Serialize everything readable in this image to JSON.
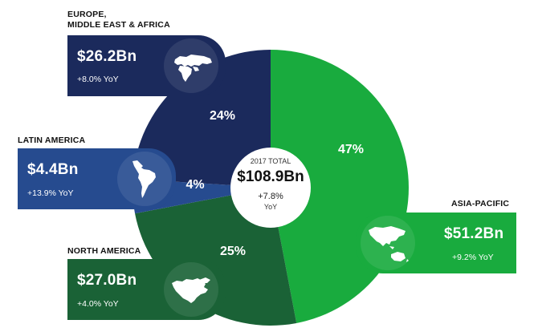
{
  "colors": {
    "emea": "#1b2a5c",
    "latam": "#264b8f",
    "north_america": "#1a6236",
    "asia_pacific": "#19ab3e",
    "white": "#ffffff"
  },
  "center": {
    "title": "2017 TOTAL",
    "value": "$108.9Bn",
    "growth": "+7.8%",
    "growth_unit": "YoY"
  },
  "regions": {
    "emea": {
      "name": "EUROPE,\nMIDDLE EAST & AFRICA",
      "amount": "$26.2Bn",
      "yoy": "+8.0% YoY",
      "share": "24%",
      "icon": "europe-africa-map-icon"
    },
    "latam": {
      "name": "LATIN AMERICA",
      "amount": "$4.4Bn",
      "yoy": "+13.9% YoY",
      "share": "4%",
      "icon": "south-america-map-icon"
    },
    "north_america": {
      "name": "NORTH AMERICA",
      "amount": "$27.0Bn",
      "yoy": "+4.0% YoY",
      "share": "25%",
      "icon": "north-america-map-icon"
    },
    "asia_pacific": {
      "name": "ASIA-PACIFIC",
      "amount": "$51.2Bn",
      "yoy": "+9.2% YoY",
      "share": "47%",
      "icon": "asia-pacific-map-icon"
    }
  },
  "chart_data": {
    "type": "pie",
    "title": "",
    "total_label": "2017 TOTAL",
    "total": 108.9,
    "unit": "$Bn",
    "start_angle_deg": 0,
    "direction": "clockwise",
    "slices": [
      {
        "key": "asia_pacific",
        "label": "ASIA-PACIFIC",
        "value": 51.2,
        "percent": 47,
        "yoy_percent": 9.2,
        "color": "#19ab3e"
      },
      {
        "key": "north_america",
        "label": "NORTH AMERICA",
        "value": 27.0,
        "percent": 25,
        "yoy_percent": 4.0,
        "color": "#1a6236"
      },
      {
        "key": "latam",
        "label": "LATIN AMERICA",
        "value": 4.4,
        "percent": 4,
        "yoy_percent": 13.9,
        "color": "#264b8f"
      },
      {
        "key": "emea",
        "label": "EUROPE, MIDDLE EAST & AFRICA",
        "value": 26.2,
        "percent": 24,
        "yoy_percent": 8.0,
        "color": "#1b2a5c"
      }
    ]
  }
}
